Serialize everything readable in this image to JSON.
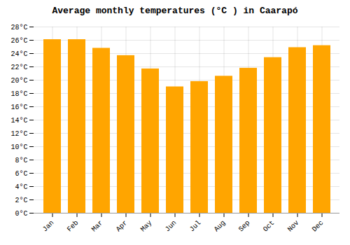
{
  "chart_data": {
    "type": "bar",
    "title": "Average monthly temperatures (°C ) in Caarapó",
    "categories": [
      "Jan",
      "Feb",
      "Mar",
      "Apr",
      "May",
      "Jun",
      "Jul",
      "Aug",
      "Sep",
      "Oct",
      "Nov",
      "Dec"
    ],
    "values": [
      26.1,
      26.1,
      24.8,
      23.7,
      21.7,
      19.0,
      19.8,
      20.6,
      21.8,
      23.4,
      24.9,
      25.2
    ],
    "color": "#FFA500",
    "ylim": [
      0,
      28
    ],
    "yticks": [
      {
        "value": 0,
        "label": "0°C"
      },
      {
        "value": 2,
        "label": "2°C"
      },
      {
        "value": 4,
        "label": "4°C"
      },
      {
        "value": 6,
        "label": "6°C"
      },
      {
        "value": 8,
        "label": "8°C"
      },
      {
        "value": 10,
        "label": "10°C"
      },
      {
        "value": 12,
        "label": "12°C"
      },
      {
        "value": 14,
        "label": "14°C"
      },
      {
        "value": 16,
        "label": "16°C"
      },
      {
        "value": 18,
        "label": "18°C"
      },
      {
        "value": 20,
        "label": "20°C"
      },
      {
        "value": 22,
        "label": "22°C"
      },
      {
        "value": 24,
        "label": "24°C"
      },
      {
        "value": 26,
        "label": "26°C"
      },
      {
        "value": 28,
        "label": "28°C"
      }
    ],
    "grid": true
  }
}
